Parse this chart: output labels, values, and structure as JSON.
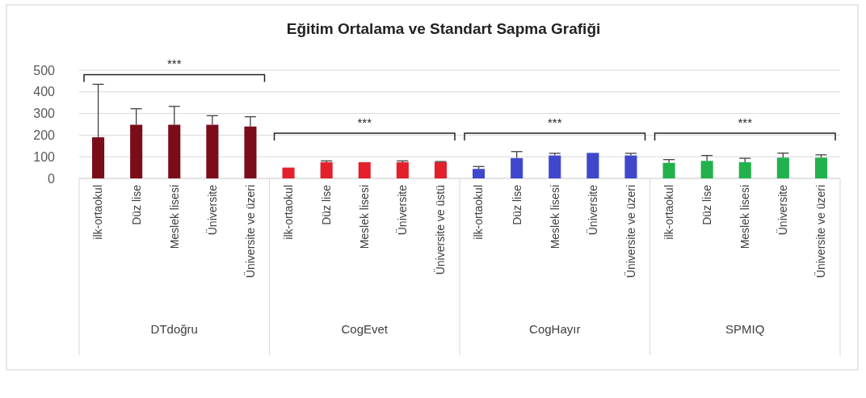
{
  "chart_data": {
    "type": "bar",
    "title": "Eğitim Ortalama ve Standart Sapma Grafiği",
    "categories": [
      "ilk-ortaokul",
      "Düz lise",
      "Meslek lisesi",
      "Üniversite",
      "Üniversite ve üzeri",
      "ilk-ortaokul",
      "Düz lise",
      "Meslek lisesi",
      "Üniversite",
      "Üniversite ve üstü",
      "ilk-ortaokul",
      "Düz lise",
      "Meslek lisesi",
      "Üniversite",
      "Üniversite ve üzeri",
      "ilk-ortaokul",
      "Düz lise",
      "Meslek lisesi",
      "Üniversite",
      "Üniversite ve üzeri"
    ],
    "series": [
      {
        "color": "#7b0c1a",
        "values": [
          190,
          248,
          248,
          248,
          240,
          null,
          null,
          null,
          null,
          null,
          null,
          null,
          null,
          null,
          null,
          null,
          null,
          null,
          null,
          null
        ],
        "errors": [
          245,
          74,
          85,
          42,
          45,
          null,
          null,
          null,
          null,
          null,
          null,
          null,
          null,
          null,
          null,
          null,
          null,
          null,
          null,
          null
        ]
      },
      {
        "color": "#e3202c",
        "values": [
          null,
          null,
          null,
          null,
          null,
          50,
          75,
          75,
          75,
          75,
          null,
          null,
          null,
          null,
          null,
          null,
          null,
          null,
          null,
          null
        ],
        "errors": [
          null,
          null,
          null,
          null,
          null,
          null,
          6,
          null,
          6,
          3,
          null,
          null,
          null,
          null,
          null,
          null,
          null,
          null,
          null,
          null
        ]
      },
      {
        "color": "#3f48cc",
        "values": [
          null,
          null,
          null,
          null,
          null,
          null,
          null,
          null,
          null,
          null,
          44,
          94,
          106,
          118,
          106,
          null,
          null,
          null,
          null,
          null
        ],
        "errors": [
          null,
          null,
          null,
          null,
          null,
          null,
          null,
          null,
          null,
          null,
          11,
          30,
          10,
          null,
          10,
          null,
          null,
          null,
          null,
          null
        ]
      },
      {
        "color": "#22b14c",
        "values": [
          null,
          null,
          null,
          null,
          null,
          null,
          null,
          null,
          null,
          null,
          null,
          null,
          null,
          null,
          null,
          72,
          81,
          75,
          96,
          96
        ],
        "errors": [
          null,
          null,
          null,
          null,
          null,
          null,
          null,
          null,
          null,
          null,
          null,
          null,
          null,
          null,
          null,
          15,
          25,
          18,
          21,
          13
        ]
      }
    ],
    "ylim": [
      0,
      500
    ],
    "yticks": [
      0,
      100,
      200,
      300,
      400,
      500
    ],
    "grid": "y",
    "annotations": [
      "***",
      "***",
      "***",
      "***",
      "DTdoğru",
      "CogEvet",
      "CogHayır",
      "SPMIQ"
    ]
  }
}
